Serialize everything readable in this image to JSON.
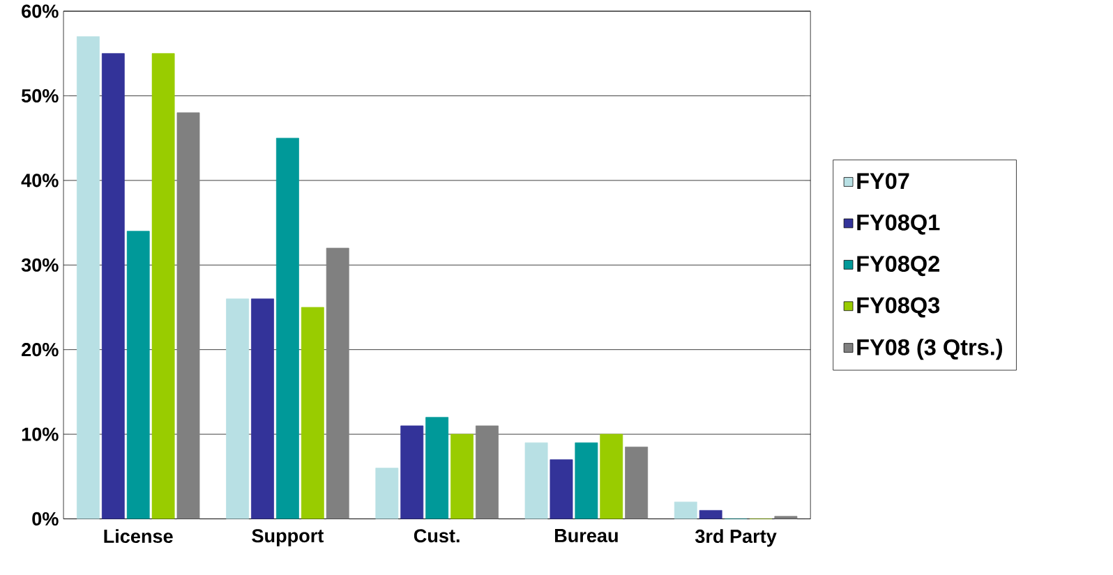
{
  "chart_data": {
    "type": "bar",
    "categories": [
      "License",
      "Support",
      "Cust.",
      "Bureau",
      "3rd Party"
    ],
    "series": [
      {
        "name": "FY07",
        "color": "#b8e0e4",
        "values": [
          57,
          26,
          6,
          9,
          2
        ]
      },
      {
        "name": "FY08Q1",
        "color": "#333399",
        "values": [
          55,
          26,
          11,
          7,
          1
        ]
      },
      {
        "name": "FY08Q2",
        "color": "#009999",
        "values": [
          34,
          45,
          12,
          9,
          0
        ]
      },
      {
        "name": "FY08Q3",
        "color": "#99cc00",
        "values": [
          55,
          25,
          10,
          10,
          0
        ]
      },
      {
        "name": "FY08 (3 Qtrs.)",
        "color": "#808080",
        "values": [
          48,
          32,
          11,
          8.5,
          0.3
        ]
      }
    ],
    "ylim": [
      0,
      60
    ],
    "yticks": [
      {
        "value": 0,
        "label": "0%"
      },
      {
        "value": 10,
        "label": "10%"
      },
      {
        "value": 20,
        "label": "20%"
      },
      {
        "value": 30,
        "label": "30%"
      },
      {
        "value": 40,
        "label": "40%"
      },
      {
        "value": 50,
        "label": "50%"
      },
      {
        "value": 60,
        "label": "60%"
      }
    ],
    "grid": "y",
    "legend": "right"
  }
}
